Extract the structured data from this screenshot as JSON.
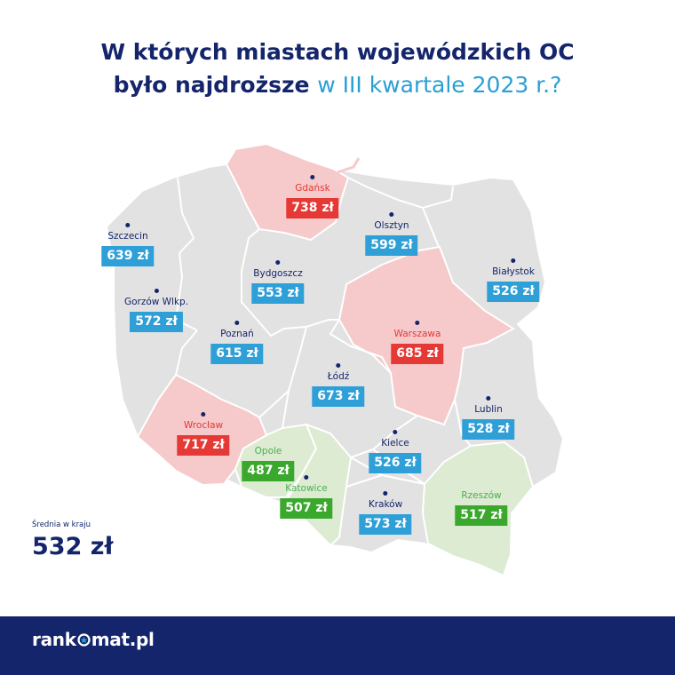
{
  "title": {
    "line1": "W których miastach  wojewódzkich  OC",
    "line2_bold": "było najdroższe",
    "line2_accent": "w III kwartale 2023 r.?"
  },
  "colors": {
    "navy": "#14256b",
    "accent_blue": "#2a9fd6",
    "price_red": "#e53935",
    "price_blue": "#2f9fd8",
    "price_green": "#3aa82c",
    "region_red": "#f6c9cb",
    "region_green": "#dcebd1",
    "region_grey": "#e2e2e2"
  },
  "cities": [
    {
      "name": "Gdańsk",
      "price": "738 zł",
      "color": "red"
    },
    {
      "name": "Olsztyn",
      "price": "599 zł",
      "color": "blue"
    },
    {
      "name": "Szczecin",
      "price": "639 zł",
      "color": "blue"
    },
    {
      "name": "Bydgoszcz",
      "price": "553 zł",
      "color": "blue"
    },
    {
      "name": "Białystok",
      "price": "526 zł",
      "color": "blue"
    },
    {
      "name": "Gorzów Wlkp.",
      "price": "572 zł",
      "color": "blue"
    },
    {
      "name": "Poznań",
      "price": "615 zł",
      "color": "blue"
    },
    {
      "name": "Warszawa",
      "price": "685 zł",
      "color": "red"
    },
    {
      "name": "Łódź",
      "price": "673 zł",
      "color": "blue"
    },
    {
      "name": "Lublin",
      "price": "528 zł",
      "color": "blue"
    },
    {
      "name": "Wrocław",
      "price": "717 zł",
      "color": "red"
    },
    {
      "name": "Opole",
      "price": "487 zł",
      "color": "green"
    },
    {
      "name": "Kielce",
      "price": "526 zł",
      "color": "blue"
    },
    {
      "name": "Katowice",
      "price": "507 zł",
      "color": "green"
    },
    {
      "name": "Kraków",
      "price": "573 zł",
      "color": "blue"
    },
    {
      "name": "Rzeszów",
      "price": "517 zł",
      "color": "green"
    }
  ],
  "average": {
    "label": "Średnia w kraju",
    "value": "532 zł"
  },
  "footer": {
    "logo_prefix": "rank",
    "logo_suffix": "mat.pl"
  }
}
